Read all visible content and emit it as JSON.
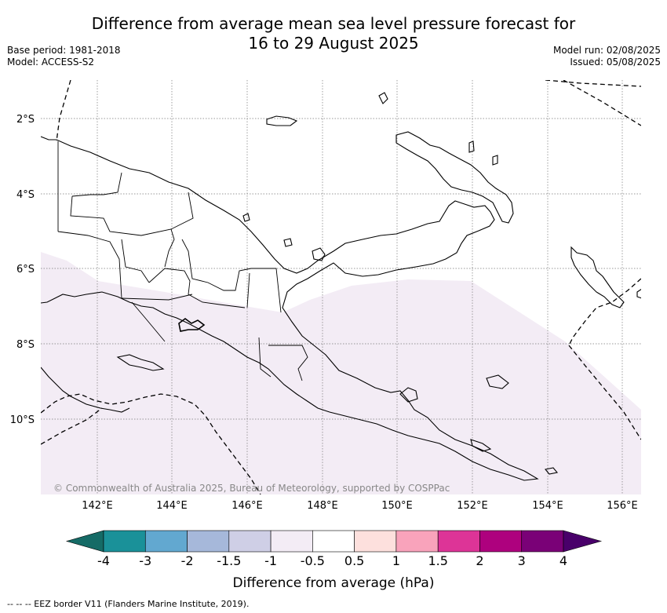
{
  "header": {
    "title_line1": "Difference from average mean sea level pressure forecast for",
    "title_line2": "16 to 29 August 2025",
    "base_period": "Base period: 1981-2018",
    "model": "Model: ACCESS-S2",
    "model_run": "Model run: 02/08/2025",
    "issued": "Issued: 05/08/2025"
  },
  "map": {
    "lat_labels": [
      "2°S",
      "4°S",
      "6°S",
      "8°S",
      "10°S"
    ],
    "lon_labels": [
      "142°E",
      "144°E",
      "146°E",
      "148°E",
      "150°E",
      "152°E",
      "154°E",
      "156°E"
    ],
    "copyright": "© Commonwealth of Australia 2025, Bureau of Meteorology, supported by COSPPac",
    "shading_category": "-1 to -0.5",
    "shading_color": "#f3ecf5"
  },
  "colorbar": {
    "label": "Difference from average (hPa)",
    "ticks": [
      "-4",
      "-3",
      "-2",
      "-1.5",
      "-1",
      "-0.5",
      "0.5",
      "1",
      "1.5",
      "2",
      "3",
      "4"
    ],
    "colors": [
      "#156b66",
      "#1a9199",
      "#62a8d0",
      "#a6b8da",
      "#cfcfe6",
      "#f3ecf5",
      "#ffffff",
      "#fde0dd",
      "#f9a3bb",
      "#dd3497",
      "#ae017e",
      "#7a0177",
      "#49006a"
    ]
  },
  "footer": {
    "legend_line": "-- -- -- EEZ border V11 (Flanders Marine Institute, 2019)."
  }
}
